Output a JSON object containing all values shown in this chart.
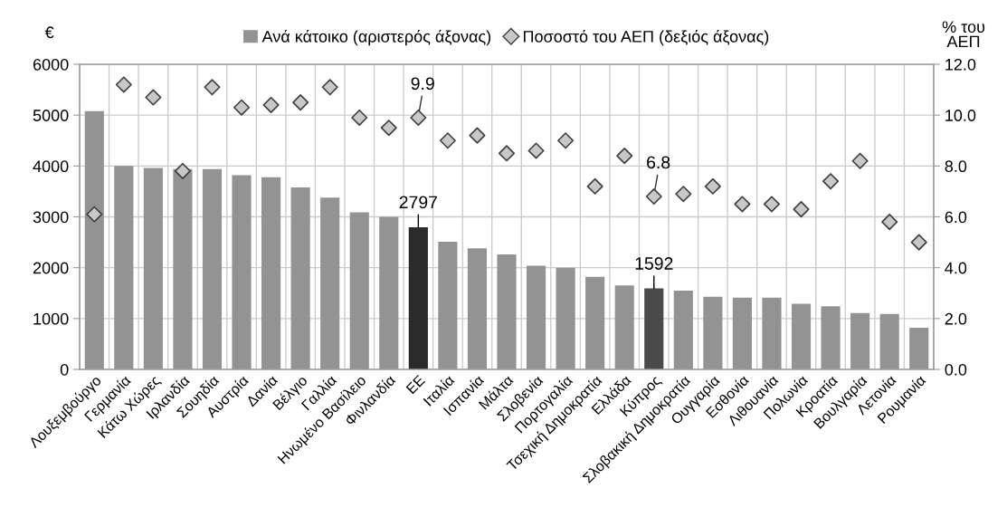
{
  "chart_data": {
    "type": "bar",
    "categories": [
      "Λουξεμβούργο",
      "Γερμανία",
      "Κάτω Χώρες",
      "Ιρλανδία",
      "Σουηδία",
      "Αυστρία",
      "Δανία",
      "Βέλγιο",
      "Γαλλία",
      "Ηνωμένο Βασίλειο",
      "Φινλανδία",
      "ΕΕ",
      "Ιταλία",
      "Ισπανία",
      "Μάλτα",
      "Σλοβενία",
      "Πορτογαλία",
      "Τσεχική Δημοκρατία",
      "Ελλάδα",
      "Κύπρος",
      "Σλοβακική Δημοκρατία",
      "Ουγγαρία",
      "Εσθονία",
      "Λιθουανία",
      "Πολωνία",
      "Κροατία",
      "Βουλγαρία",
      "Λετονία",
      "Ρουμανία"
    ],
    "series": [
      {
        "name": "Ανά κάτοικο (αριστερός άξονας)",
        "color": "#939393",
        "colors": [
          "#939393",
          "#939393",
          "#939393",
          "#939393",
          "#939393",
          "#939393",
          "#939393",
          "#939393",
          "#939393",
          "#939393",
          "#939393",
          "#2b2b2b",
          "#939393",
          "#939393",
          "#939393",
          "#939393",
          "#939393",
          "#939393",
          "#939393",
          "#4a4a4a",
          "#939393",
          "#939393",
          "#939393",
          "#939393",
          "#939393",
          "#939393",
          "#939393",
          "#939393",
          "#939393"
        ],
        "values": [
          5080,
          4000,
          3960,
          3940,
          3940,
          3820,
          3780,
          3580,
          3380,
          3090,
          3000,
          2797,
          2510,
          2380,
          2260,
          2040,
          2000,
          1820,
          1650,
          1592,
          1550,
          1430,
          1410,
          1410,
          1290,
          1240,
          1110,
          1090,
          820
        ],
        "value_labels": [
          null,
          null,
          null,
          null,
          null,
          null,
          null,
          null,
          null,
          null,
          null,
          "2797",
          null,
          null,
          null,
          null,
          null,
          null,
          null,
          "1592",
          null,
          null,
          null,
          null,
          null,
          null,
          null,
          null,
          null
        ]
      },
      {
        "name": "Ποσοστό του ΑΕΠ (δεξιός άξονας)",
        "type": "scatter",
        "axis": "y2",
        "marker": "diamond",
        "color": "#c8c8c8",
        "values": [
          6.1,
          11.2,
          10.7,
          7.8,
          11.1,
          10.3,
          10.4,
          10.5,
          11.1,
          9.9,
          9.5,
          9.9,
          9.0,
          9.2,
          8.5,
          8.6,
          9.0,
          7.2,
          8.4,
          6.8,
          6.9,
          7.2,
          6.5,
          6.5,
          6.3,
          7.4,
          8.2,
          5.8,
          5.0
        ],
        "value_labels": [
          null,
          null,
          null,
          null,
          null,
          null,
          null,
          null,
          null,
          null,
          null,
          "9.9",
          null,
          null,
          null,
          null,
          null,
          null,
          null,
          "6.8",
          null,
          null,
          null,
          null,
          null,
          null,
          null,
          null,
          null
        ]
      }
    ],
    "ylabel": "€",
    "y2label": "% του\nΑΕΠ",
    "ylim": [
      0,
      6000
    ],
    "yticks": [
      0,
      1000,
      2000,
      3000,
      4000,
      5000,
      6000
    ],
    "y2lim": [
      0,
      12
    ],
    "y2ticks": [
      {
        "value": 0,
        "label": "0.0"
      },
      {
        "value": 2,
        "label": "2.0"
      },
      {
        "value": 4,
        "label": "4.0"
      },
      {
        "value": 6,
        "label": "6.0"
      },
      {
        "value": 8,
        "label": "8.0"
      },
      {
        "value": 10,
        "label": "10.0"
      },
      {
        "value": 12,
        "label": "12.0"
      }
    ],
    "grid": true,
    "legend": "top"
  }
}
